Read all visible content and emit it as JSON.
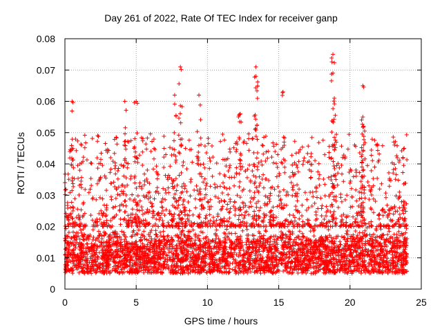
{
  "chart_data": {
    "type": "scatter",
    "title": "Day 261 of 2022, Rate Of TEC Index for receiver ganp",
    "xlabel": "GPS time / hours",
    "ylabel": "ROTI / TECUs",
    "xlim": [
      0,
      25
    ],
    "ylim": [
      0,
      0.08
    ],
    "xticks": [
      "0",
      "5",
      "10",
      "15",
      "20",
      "25"
    ],
    "yticks": [
      "0",
      "0.01",
      "0.02",
      "0.03",
      "0.04",
      "0.05",
      "0.06",
      "0.07",
      "0.08"
    ],
    "grid": true,
    "marker": "+",
    "color": "#ff0000",
    "x_range": [
      0,
      24
    ],
    "typical_range": [
      0.005,
      0.02
    ],
    "peaks": [
      {
        "x": 0.5,
        "y": 0.06
      },
      {
        "x": 4.2,
        "y": 0.06
      },
      {
        "x": 5.0,
        "y": 0.06
      },
      {
        "x": 7.7,
        "y": 0.062
      },
      {
        "x": 8.1,
        "y": 0.071
      },
      {
        "x": 9.4,
        "y": 0.062
      },
      {
        "x": 12.3,
        "y": 0.056
      },
      {
        "x": 13.4,
        "y": 0.071
      },
      {
        "x": 13.4,
        "y": 0.068
      },
      {
        "x": 15.3,
        "y": 0.063
      },
      {
        "x": 18.8,
        "y": 0.075
      },
      {
        "x": 18.8,
        "y": 0.069
      },
      {
        "x": 18.9,
        "y": 0.061
      },
      {
        "x": 20.9,
        "y": 0.065
      },
      {
        "x": 20.9,
        "y": 0.055
      },
      {
        "x": 23.8,
        "y": 0.045
      }
    ]
  }
}
